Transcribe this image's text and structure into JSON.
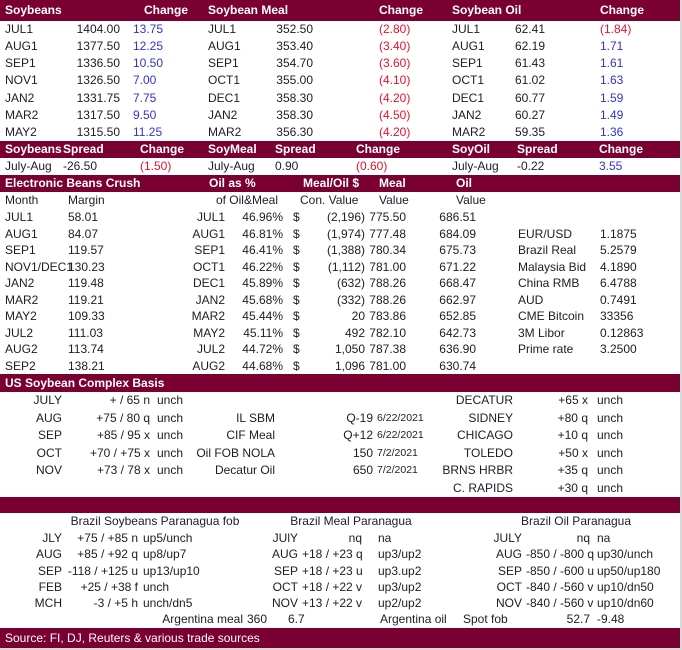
{
  "colors": {
    "maroon": "#7A0031",
    "blue": "#3333CC",
    "red": "#E8112D",
    "ink": "#1C1C28",
    "border_gray": "#D9D9D9"
  },
  "futures": {
    "panes": [
      {
        "title": "Soybeans",
        "change_label": "Change",
        "rows": [
          {
            "month": "JUL1",
            "price": "1404.00",
            "change": "13.75",
            "dir": "up"
          },
          {
            "month": "AUG1",
            "price": "1377.50",
            "change": "12.25",
            "dir": "up"
          },
          {
            "month": "SEP1",
            "price": "1336.50",
            "change": "10.50",
            "dir": "up"
          },
          {
            "month": "NOV1",
            "price": "1326.50",
            "change": "7.00",
            "dir": "up"
          },
          {
            "month": "JAN2",
            "price": "1331.75",
            "change": "7.75",
            "dir": "up"
          },
          {
            "month": "MAR2",
            "price": "1317.50",
            "change": "9.50",
            "dir": "up"
          },
          {
            "month": "MAY2",
            "price": "1315.50",
            "change": "11.25",
            "dir": "up"
          }
        ]
      },
      {
        "title": "Soybean Meal",
        "change_label": "Change",
        "rows": [
          {
            "month": "JUL1",
            "price": "352.50",
            "change": "(2.80)",
            "dir": "dn"
          },
          {
            "month": "AUG1",
            "price": "353.40",
            "change": "(3.40)",
            "dir": "dn"
          },
          {
            "month": "SEP1",
            "price": "354.70",
            "change": "(3.60)",
            "dir": "dn"
          },
          {
            "month": "OCT1",
            "price": "355.00",
            "change": "(4.10)",
            "dir": "dn"
          },
          {
            "month": "DEC1",
            "price": "358.30",
            "change": "(4.20)",
            "dir": "dn"
          },
          {
            "month": "JAN2",
            "price": "358.30",
            "change": "(4.50)",
            "dir": "dn"
          },
          {
            "month": "MAR2",
            "price": "356.30",
            "change": "(4.20)",
            "dir": "dn"
          }
        ]
      },
      {
        "title": "Soybean Oil",
        "change_label": "Change",
        "rows": [
          {
            "month": "JUL1",
            "price": "62.41",
            "change": "(1.84)",
            "dir": "dn"
          },
          {
            "month": "AUG1",
            "price": "62.19",
            "change": "1.71",
            "dir": "up"
          },
          {
            "month": "SEP1",
            "price": "61.43",
            "change": "1.61",
            "dir": "up"
          },
          {
            "month": "OCT1",
            "price": "61.02",
            "change": "1.63",
            "dir": "up"
          },
          {
            "month": "DEC1",
            "price": "60.77",
            "change": "1.59",
            "dir": "up"
          },
          {
            "month": "JAN2",
            "price": "60.27",
            "change": "1.49",
            "dir": "up"
          },
          {
            "month": "MAR2",
            "price": "59.35",
            "change": "1.36",
            "dir": "up"
          }
        ]
      }
    ]
  },
  "spreads": {
    "groups": [
      {
        "title": "Soybeans",
        "spread_label": "Spread",
        "change_label": "Change",
        "period": "July-Aug",
        "spread": "-26.50",
        "change": "(1.50)",
        "dir": "dn"
      },
      {
        "title": "SoyMeal",
        "spread_label": "Spread",
        "change_label": "Change",
        "period": "July-Aug",
        "spread": "0.90",
        "change": "(0.60)",
        "dir": "dn"
      },
      {
        "title": "SoyOil",
        "spread_label": "Spread",
        "change_label": "Change",
        "period": "July-Aug",
        "spread": "-0.22",
        "change": "3.55",
        "dir": "up"
      }
    ]
  },
  "crush": {
    "title": "Electronic Beans Crush",
    "headers": {
      "oil_pct": "Oil as %",
      "meal_oil": "Meal/Oil $",
      "meal": "Meal",
      "oil": "Oil"
    },
    "subheaders": {
      "month": "Month",
      "margin": "Margin",
      "of_oilmeal": "of Oil&Meal",
      "con_value": "Con. Value",
      "value1": "Value",
      "value2": "Value"
    },
    "rows": [
      {
        "month": "JUL1",
        "margin": "58.01",
        "pct_month": "JUL1",
        "pct": "46.96%",
        "dollar": "$",
        "con": "(2,196)",
        "meal": "775.50",
        "oil": "686.51",
        "fx_label": "",
        "fx_value": ""
      },
      {
        "month": "AUG1",
        "margin": "84.07",
        "pct_month": "AUG1",
        "pct": "46.81%",
        "dollar": "$",
        "con": "(1,974)",
        "meal": "777.48",
        "oil": "684.09",
        "fx_label": "EUR/USD",
        "fx_value": "1.1875"
      },
      {
        "month": "SEP1",
        "margin": "119.57",
        "pct_month": "SEP1",
        "pct": "46.41%",
        "dollar": "$",
        "con": "(1,388)",
        "meal": "780.34",
        "oil": "675.73",
        "fx_label": "Brazil Real",
        "fx_value": "5.2579"
      },
      {
        "month": "NOV1/DEC1",
        "margin": "130.23",
        "pct_month": "OCT1",
        "pct": "46.22%",
        "dollar": "$",
        "con": "(1,112)",
        "meal": "781.00",
        "oil": "671.22",
        "fx_label": "Malaysia Bid",
        "fx_value": "4.1890"
      },
      {
        "month": "JAN2",
        "margin": "119.48",
        "pct_month": "DEC1",
        "pct": "45.89%",
        "dollar": "$",
        "con": "(632)",
        "meal": "788.26",
        "oil": "668.47",
        "fx_label": "China RMB",
        "fx_value": "6.4788"
      },
      {
        "month": "MAR2",
        "margin": "119.21",
        "pct_month": "JAN2",
        "pct": "45.68%",
        "dollar": "$",
        "con": "(332)",
        "meal": "788.26",
        "oil": "662.97",
        "fx_label": "AUD",
        "fx_value": "0.7491"
      },
      {
        "month": "MAY2",
        "margin": "109.33",
        "pct_month": "MAR2",
        "pct": "45.44%",
        "dollar": "$",
        "con": "20",
        "meal": "783.86",
        "oil": "652.85",
        "fx_label": "CME Bitcoin",
        "fx_value": "33356"
      },
      {
        "month": "JUL2",
        "margin": "111.03",
        "pct_month": "MAY2",
        "pct": "45.11%",
        "dollar": "$",
        "con": "492",
        "meal": "782.10",
        "oil": "642.73",
        "fx_label": "3M Libor",
        "fx_value": "0.12863"
      },
      {
        "month": "AUG2",
        "margin": "113.74",
        "pct_month": "JUL2",
        "pct": "44.72%",
        "dollar": "$",
        "con": "1,050",
        "meal": "787.38",
        "oil": "636.90",
        "fx_label": "Prime rate",
        "fx_value": "3.2500"
      },
      {
        "month": "SEP2",
        "margin": "138.21",
        "pct_month": "AUG2",
        "pct": "44.68%",
        "dollar": "$",
        "con": "1,096",
        "meal": "781.00",
        "oil": "630.74",
        "fx_label": "",
        "fx_value": ""
      }
    ]
  },
  "basis": {
    "title": "US Soybean Complex Basis",
    "rows": [
      {
        "m": "JULY",
        "v": "+ / 65 n",
        "u": "unch",
        "ml": "",
        "mv": "",
        "md": "",
        "rl": "DECATUR",
        "rv": "+65 x",
        "ru": "unch"
      },
      {
        "m": "AUG",
        "v": "+75 / 80 q",
        "u": "unch",
        "ml": "IL SBM",
        "mv": "Q-19",
        "md": "6/22/2021",
        "rl": "SIDNEY",
        "rv": "+80 q",
        "ru": "unch"
      },
      {
        "m": "SEP",
        "v": "+85 / 95 x",
        "u": "unch",
        "ml": "CIF Meal",
        "mv": "Q+12",
        "md": "6/22/2021",
        "rl": "CHICAGO",
        "rv": "+10 q",
        "ru": "unch"
      },
      {
        "m": "OCT",
        "v": "+70 / +75 x",
        "u": "unch",
        "ml": "Oil FOB NOLA",
        "mv": "150",
        "md": "7/2/2021",
        "rl": "TOLEDO",
        "rv": "+50 x",
        "ru": "unch"
      },
      {
        "m": "NOV",
        "v": "+73 / 78 x",
        "u": "unch",
        "ml": "Decatur Oil",
        "mv": "650",
        "md": "7/2/2021",
        "rl": "BRNS HRBR",
        "rv": "+35 q",
        "ru": "unch"
      },
      {
        "m": "",
        "v": "",
        "u": "",
        "ml": "",
        "mv": "",
        "md": "",
        "rl": "C. RAPIDS",
        "rv": "+30 q",
        "ru": "unch"
      }
    ]
  },
  "brazil": {
    "titles": [
      "Brazil Soybeans Paranagua fob",
      "Brazil Meal Paranagua",
      "Brazil Oil Paranagua"
    ],
    "rows": [
      {
        "m1": "JLY",
        "v1": "+75 / +85 n",
        "c1": "up5/unch",
        "m2": "JUlY",
        "v2": "nq",
        "c2": "na",
        "m3": "JULY",
        "v3": "nq",
        "c3": "na"
      },
      {
        "m1": "AUG",
        "v1": "+85 / +92 q",
        "c1": "up8/up7",
        "m2": "AUG",
        "v2": "+18 / +23 q",
        "c2": "up3/up2",
        "m3": "AUG",
        "v3": "-850 / -800 q",
        "c3": "up30/unch"
      },
      {
        "m1": "SEP",
        "v1": "-118 / +125 u",
        "c1": "up13/up10",
        "m2": "SEP",
        "v2": "+18 / +23 u",
        "c2": "up3.up2",
        "m3": "SEP",
        "v3": "-850 / -600 u",
        "c3": "up50/up180"
      },
      {
        "m1": "FEB",
        "v1": "+25 / +38 f",
        "c1": "unch",
        "m2": "OCT",
        "v2": "+18 / +22 v",
        "c2": "up3/up2",
        "m3": "OCT",
        "v3": "-840 / -560 v",
        "c3": "up10/dn50"
      },
      {
        "m1": "MCH",
        "v1": "-3 / +5 h",
        "c1": "unch/dn5",
        "m2": "NOV",
        "v2": "+13 / +22 v",
        "c2": "up2/up2",
        "m3": "NOV",
        "v3": "-840 / -560 v",
        "c3": "up10/dn60"
      }
    ],
    "bottom": {
      "arg_meal_label": "Argentina meal",
      "arg_meal_val": "360",
      "arg_meal_val2": "6.7",
      "arg_oil_label": "Argentina oil",
      "spot_label": "Spot fob",
      "spot_val": "52.7",
      "spot_chg": "-9.48"
    }
  },
  "footer": {
    "source": "Source: FI, DJ, Reuters & various trade sources"
  }
}
